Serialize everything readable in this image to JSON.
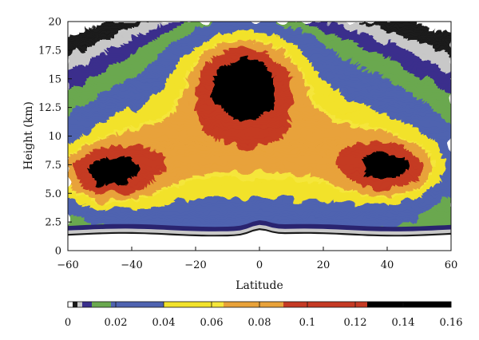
{
  "chart_data": {
    "type": "heatmap",
    "title": "",
    "xlabel": "Latitude",
    "ylabel": "Height (km)",
    "xlim": [
      -60,
      60
    ],
    "ylim": [
      0,
      20
    ],
    "x_ticks": [
      -60,
      -40,
      -20,
      0,
      20,
      40,
      60
    ],
    "x_tick_labels": [
      "−60",
      "−40",
      "−20",
      "0",
      "20",
      "40",
      "60"
    ],
    "y_ticks": [
      0,
      2.5,
      5.0,
      7.5,
      10,
      12.5,
      15,
      17.5,
      20
    ],
    "y_tick_labels": [
      "0",
      "2.5",
      "5.0",
      "7.5",
      "10",
      "12.5",
      "15",
      "17.5",
      "20"
    ],
    "colorbar": {
      "range": [
        0,
        0.16
      ],
      "ticks": [
        0,
        0.02,
        0.04,
        0.06,
        0.08,
        0.1,
        0.12,
        0.14,
        0.16
      ],
      "tick_labels": [
        "0",
        "0.02",
        "0.04",
        "0.06",
        "0.08",
        "0.1",
        "0.12",
        "0.14",
        "0.16"
      ],
      "bins": [
        {
          "from": 0.0,
          "to": 0.002,
          "color": "#ffffff"
        },
        {
          "from": 0.002,
          "to": 0.004,
          "color": "#1a1a1a"
        },
        {
          "from": 0.004,
          "to": 0.006,
          "color": "#c8c8c8"
        },
        {
          "from": 0.006,
          "to": 0.01,
          "color": "#3a2f8c"
        },
        {
          "from": 0.01,
          "to": 0.018,
          "color": "#6aa84f"
        },
        {
          "from": 0.018,
          "to": 0.04,
          "color": "#4f63b0"
        },
        {
          "from": 0.04,
          "to": 0.06,
          "color": "#f2e22a"
        },
        {
          "from": 0.06,
          "to": 0.065,
          "color": "#f5e63a"
        },
        {
          "from": 0.065,
          "to": 0.09,
          "color": "#e8a23a"
        },
        {
          "from": 0.09,
          "to": 0.125,
          "color": "#c53a24"
        },
        {
          "from": 0.125,
          "to": 0.16,
          "color": "#000000"
        }
      ]
    },
    "regions": {
      "ground_black_km": 1.5,
      "ground_gray_km": 1.8,
      "dark_navy_km": 2.2,
      "features": [
        {
          "name": "lower-gray-layer",
          "level": 0.005,
          "lat": 0,
          "height": 4.0,
          "width_lat": 130,
          "height_km": 4.5
        },
        {
          "name": "central-core",
          "level": 0.14,
          "lat": -5,
          "height": 15.0,
          "width_lat": 10,
          "height_km": 1.8
        },
        {
          "name": "south-core",
          "level": 0.11,
          "lat": -48,
          "height": 6.7,
          "width_lat": 12,
          "height_km": 1.5
        },
        {
          "name": "north-core",
          "level": 0.11,
          "lat": 41,
          "height": 7.4,
          "width_lat": 12,
          "height_km": 1.5
        }
      ]
    }
  }
}
